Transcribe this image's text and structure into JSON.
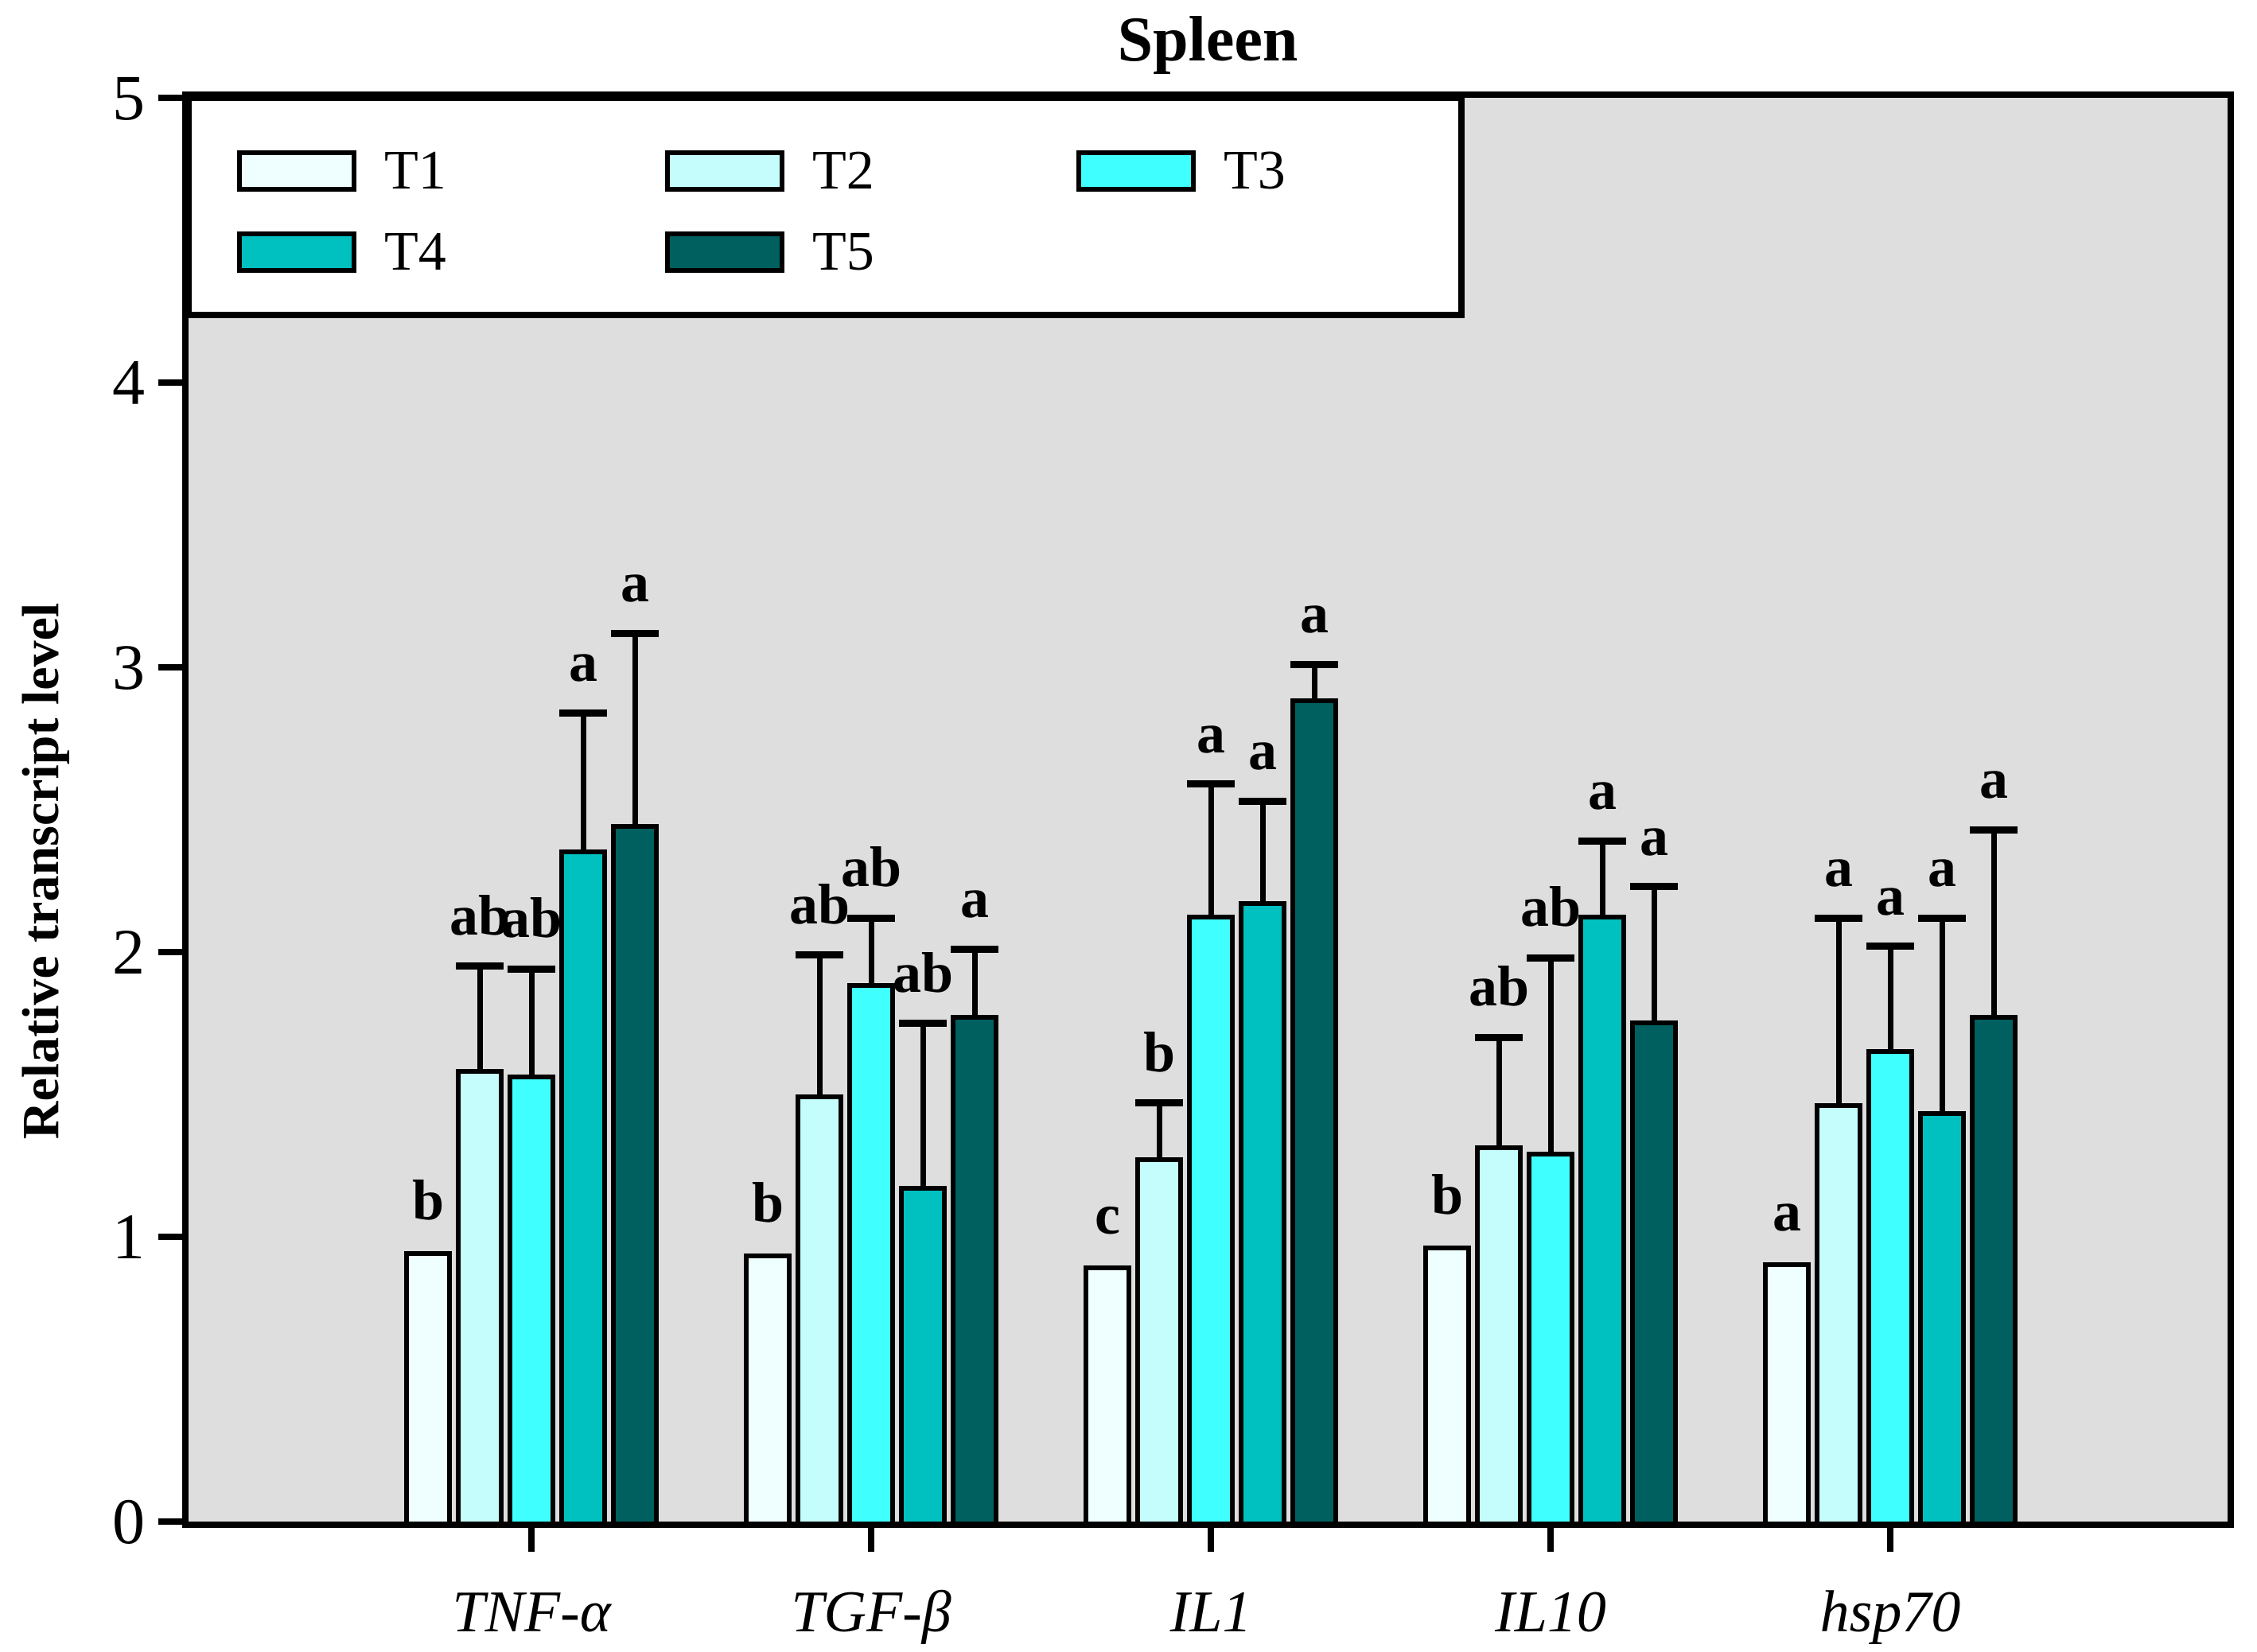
{
  "title": "Spleen",
  "y_axis_title": "Relative transcript level",
  "colors": {
    "plot_background": "#DEDEDE",
    "page_background": "#FFFFFF",
    "axis": "#000000"
  },
  "legend": {
    "items": [
      {
        "label": "T1",
        "color": "#EFFFFF"
      },
      {
        "label": "T2",
        "color": "#C5FDFD"
      },
      {
        "label": "T3",
        "color": "#3FFFFF"
      },
      {
        "label": "T4",
        "color": "#00C0C0"
      },
      {
        "label": "T5",
        "color": "#005F5F"
      }
    ]
  },
  "chart_data": {
    "type": "bar",
    "title": "Spleen",
    "xlabel": "",
    "ylabel": "Relative transcript level",
    "ylim": [
      0,
      5
    ],
    "ytick_labels": [
      "0",
      "1",
      "2",
      "3",
      "4",
      "5"
    ],
    "grid": false,
    "legend_position": "top-left",
    "error_bars": "upper",
    "categories": [
      "TNF-α",
      "TGF-β",
      "IL1",
      "IL10",
      "hsp70"
    ],
    "series": [
      {
        "name": "T1",
        "color": "#EFFFFF",
        "values": [
          0.95,
          0.94,
          0.9,
          0.97,
          0.91
        ],
        "errors": [
          0,
          0,
          0,
          0,
          0
        ],
        "letters": [
          "b",
          "b",
          "c",
          "b",
          "a"
        ]
      },
      {
        "name": "T2",
        "color": "#C5FDFD",
        "values": [
          1.59,
          1.5,
          1.28,
          1.32,
          1.47
        ],
        "errors": [
          0.36,
          0.49,
          0.19,
          0.38,
          0.65
        ],
        "letters": [
          "ab",
          "ab",
          "b",
          "ab",
          "a"
        ]
      },
      {
        "name": "T3",
        "color": "#3FFFFF",
        "values": [
          1.57,
          1.89,
          2.13,
          1.3,
          1.66
        ],
        "errors": [
          0.37,
          0.23,
          0.46,
          0.68,
          0.36
        ],
        "letters": [
          "ab",
          "ab",
          "a",
          "ab",
          "a"
        ]
      },
      {
        "name": "T4",
        "color": "#00C0C0",
        "values": [
          2.36,
          1.18,
          2.18,
          2.13,
          1.44
        ],
        "errors": [
          0.48,
          0.57,
          0.35,
          0.26,
          0.68
        ],
        "letters": [
          "a",
          "ab",
          "a",
          "a",
          "a"
        ]
      },
      {
        "name": "T5",
        "color": "#005F5F",
        "values": [
          2.45,
          1.78,
          2.89,
          1.76,
          1.78
        ],
        "errors": [
          0.67,
          0.23,
          0.12,
          0.47,
          0.65
        ],
        "letters": [
          "a",
          "a",
          "a",
          "a",
          "a"
        ]
      }
    ]
  }
}
